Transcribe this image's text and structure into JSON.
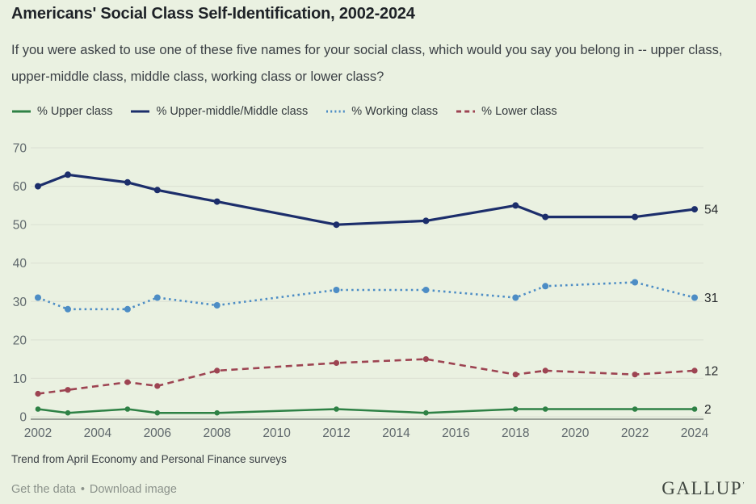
{
  "header": {
    "title": "Americans' Social Class Self-Identification, 2002-2024",
    "subtitle": "If you were asked to use one of these five names for your social class, which would you say you belong in -- upper class, upper-middle class, middle class, working class or lower class?"
  },
  "legend": [
    {
      "id": "upper-class",
      "label": "% Upper class",
      "color": "#2e8145",
      "style": "solid"
    },
    {
      "id": "upper-middle-middle-class",
      "label": "% Upper-middle/Middle class",
      "color": "#1c2e6b",
      "style": "solid"
    },
    {
      "id": "working-class",
      "label": "% Working class",
      "color": "#4d8dc5",
      "style": "dotted"
    },
    {
      "id": "lower-class",
      "label": "% Lower class",
      "color": "#9d4452",
      "style": "dashed"
    }
  ],
  "chart_data": {
    "type": "line",
    "title": "Americans' Social Class Self-Identification, 2002-2024",
    "x": [
      2002,
      2003,
      2005,
      2006,
      2008,
      2012,
      2015,
      2018,
      2019,
      2022,
      2024
    ],
    "series": [
      {
        "id": "upper-middle-middle-class",
        "name": "% Upper-middle/Middle class",
        "values": [
          60,
          63,
          61,
          59,
          56,
          50,
          51,
          55,
          52,
          52,
          54
        ],
        "color": "#1c2e6b",
        "style": "solid",
        "end_label": "54",
        "line_width": 3.2,
        "marker_radius": 4
      },
      {
        "id": "working-class",
        "name": "% Working class",
        "values": [
          31,
          28,
          28,
          31,
          29,
          33,
          33,
          31,
          34,
          35,
          31
        ],
        "color": "#4d8dc5",
        "style": "dotted",
        "end_label": "31",
        "line_width": 2.6,
        "marker_radius": 4
      },
      {
        "id": "lower-class",
        "name": "% Lower class",
        "values": [
          6,
          7,
          9,
          8,
          12,
          14,
          15,
          11,
          12,
          11,
          12
        ],
        "color": "#9d4452",
        "style": "dashed",
        "end_label": "12",
        "line_width": 2.6,
        "marker_radius": 3.6
      },
      {
        "id": "upper-class",
        "name": "% Upper class",
        "values": [
          2,
          1,
          2,
          1,
          1,
          2,
          1,
          2,
          2,
          2,
          2
        ],
        "color": "#2e8145",
        "style": "solid",
        "end_label": "2",
        "line_width": 2.5,
        "marker_radius": 3.3
      }
    ],
    "xticks": [
      2002,
      2004,
      2006,
      2008,
      2010,
      2012,
      2014,
      2016,
      2018,
      2020,
      2022,
      2024
    ],
    "yticks": [
      70,
      60,
      50,
      40,
      30,
      20,
      10,
      0
    ],
    "xlim": [
      2002,
      2024
    ],
    "ylim": [
      0,
      70
    ],
    "grid": "horizontal",
    "legend_position": "top"
  },
  "footer": {
    "note": "Trend from April Economy and Personal Finance surveys",
    "link_get_data": "Get the data",
    "separator": "•",
    "link_download": "Download image",
    "logo": "GALLUP",
    "logo_mark": "’"
  },
  "colors": {
    "background": "#eaf1e1",
    "grid": "#dbe0d2",
    "axis": "#9aa198",
    "tick_text": "#5f686c",
    "end_label": "#26292c"
  }
}
